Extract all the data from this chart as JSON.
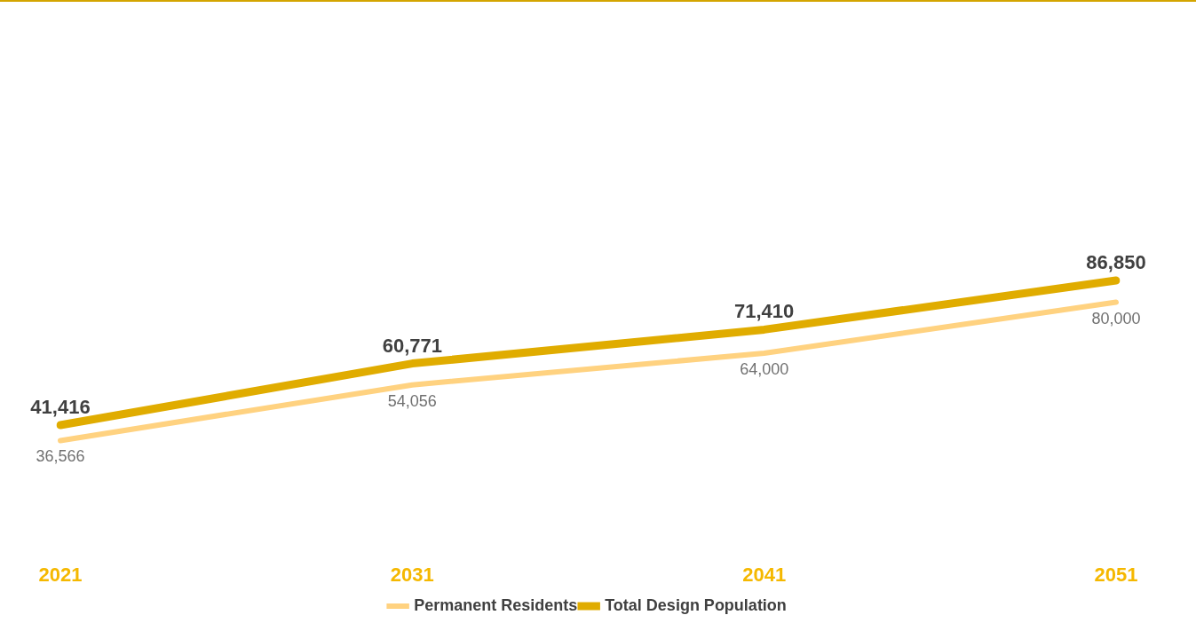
{
  "chart_data": {
    "type": "line",
    "categories": [
      "2021",
      "2031",
      "2041",
      "2051"
    ],
    "series": [
      {
        "name": "Permanent Residents",
        "color": "#ffd280",
        "values": [
          36566,
          54056,
          64000,
          80000
        ],
        "value_labels": [
          "36,566",
          "54,056",
          "64,000",
          "80,000"
        ]
      },
      {
        "name": "Total Design Population",
        "color": "#e0ac00",
        "values": [
          41416,
          60771,
          71410,
          86850
        ],
        "value_labels": [
          "41,416",
          "60,771",
          "71,410",
          "86,850"
        ]
      }
    ],
    "legend": "bottom",
    "grid": false,
    "marker": "none",
    "line_style": "solid"
  }
}
